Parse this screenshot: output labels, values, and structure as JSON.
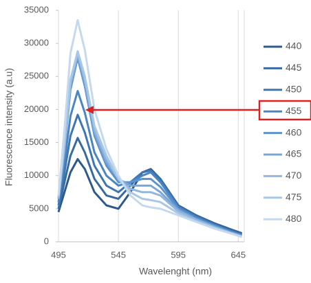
{
  "chart_data": {
    "type": "line",
    "xlabel": "Wavelenght (nm)",
    "ylabel": "Fluorescence intensity (a.u)",
    "x": [
      495,
      500,
      505,
      511,
      517,
      525,
      535,
      545,
      555,
      565,
      572,
      580,
      595,
      610,
      625,
      640,
      648
    ],
    "xlim": [
      495,
      650
    ],
    "xticks": [
      495,
      545,
      595,
      645
    ],
    "ylim": [
      0,
      35000
    ],
    "yticks": [
      0,
      5000,
      10000,
      15000,
      20000,
      25000,
      30000,
      35000
    ],
    "xgrid": true,
    "legend": "right",
    "series": [
      {
        "name": "440",
        "color": "#2d5a8a",
        "values": [
          4500,
          7500,
          10500,
          12500,
          11000,
          7500,
          5500,
          5000,
          7500,
          10500,
          11000,
          9500,
          5500,
          4000,
          2800,
          1800,
          1300
        ]
      },
      {
        "name": "445",
        "color": "#376aa0",
        "values": [
          5000,
          9000,
          13000,
          15700,
          13500,
          9500,
          7000,
          6500,
          8500,
          10500,
          10800,
          9500,
          5500,
          4000,
          2700,
          1700,
          1200
        ]
      },
      {
        "name": "450",
        "color": "#3d76b3",
        "values": [
          5500,
          10500,
          16000,
          19200,
          16500,
          11500,
          8500,
          7500,
          9000,
          10500,
          10800,
          9300,
          5300,
          3800,
          2600,
          1600,
          1100
        ]
      },
      {
        "name": "455",
        "color": "#4a85c4",
        "values": [
          6000,
          12000,
          19000,
          22800,
          19500,
          13500,
          10000,
          8500,
          9000,
          10000,
          10500,
          9000,
          5200,
          3700,
          2500,
          1500,
          1000
        ]
      },
      {
        "name": "460",
        "color": "#5b93cf",
        "values": [
          6500,
          14000,
          23000,
          27800,
          23500,
          16000,
          11500,
          9000,
          9000,
          9500,
          9500,
          8300,
          5000,
          3500,
          2400,
          1400,
          900
        ]
      },
      {
        "name": "465",
        "color": "#79a6d6",
        "values": [
          6500,
          14000,
          23500,
          28200,
          24000,
          16500,
          12000,
          9500,
          8500,
          8500,
          8500,
          7500,
          4800,
          3400,
          2300,
          1300,
          900
        ]
      },
      {
        "name": "470",
        "color": "#91b7de",
        "values": [
          6500,
          14500,
          24000,
          28500,
          24500,
          17000,
          12500,
          9500,
          8000,
          7500,
          7500,
          7000,
          4600,
          3300,
          2200,
          1300,
          800
        ]
      },
      {
        "name": "475",
        "color": "#a8c6e6",
        "values": [
          6800,
          15000,
          24500,
          28800,
          25000,
          17500,
          13000,
          9500,
          7500,
          6500,
          6300,
          6000,
          4300,
          3100,
          2100,
          1200,
          800
        ]
      },
      {
        "name": "480",
        "color": "#c4d8ee",
        "values": [
          7000,
          17000,
          28500,
          33500,
          29000,
          20000,
          14000,
          10000,
          7000,
          5500,
          5200,
          5000,
          4000,
          3000,
          2000,
          1200,
          700
        ]
      }
    ]
  }
}
